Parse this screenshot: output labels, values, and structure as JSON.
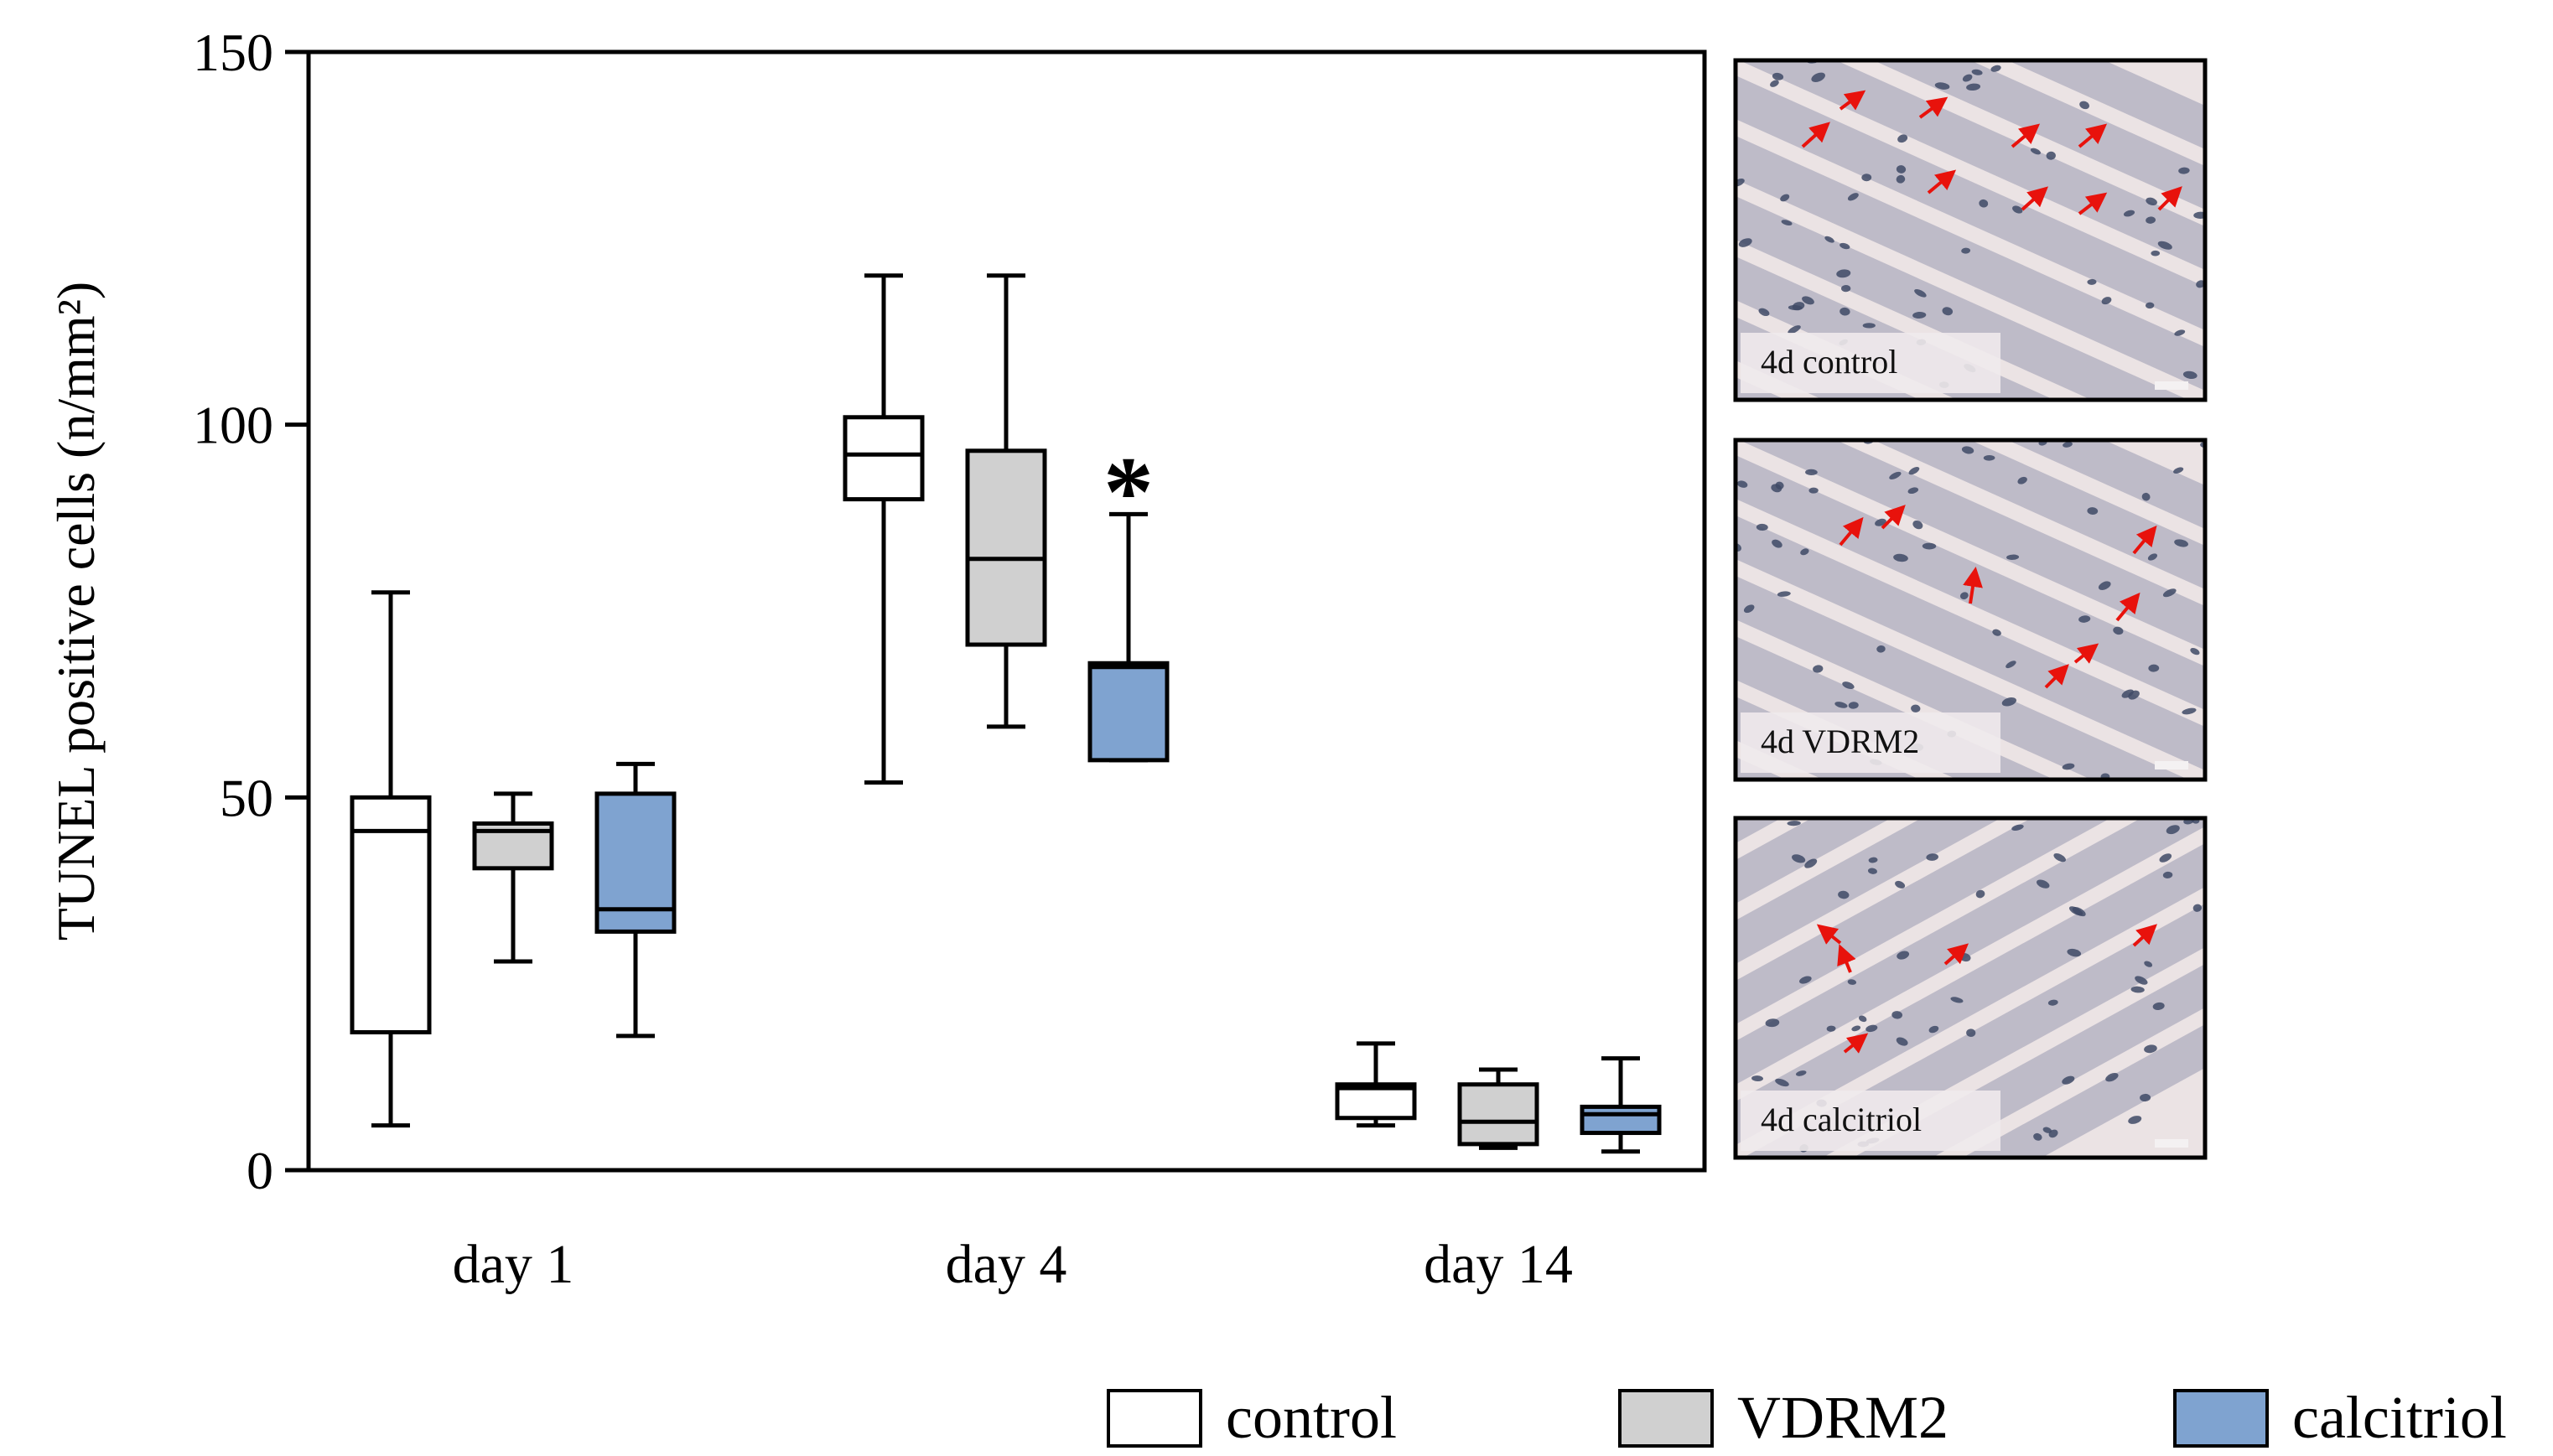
{
  "chart_data": {
    "type": "box",
    "ylabel": "TUNEL positive cells (n/mm²)",
    "xlabel": "",
    "ylim": [
      0,
      150
    ],
    "yticks": [
      0,
      50,
      100,
      150
    ],
    "categories": [
      "day 1",
      "day 4",
      "day 14"
    ],
    "series": [
      {
        "name": "control",
        "color": "#ffffff",
        "boxes": [
          {
            "min": 6,
            "q1": 18.5,
            "median": 45.5,
            "q3": 50,
            "max": 77.5
          },
          {
            "min": 52,
            "q1": 90,
            "median": 96,
            "q3": 101,
            "max": 120
          },
          {
            "min": 6,
            "q1": 7,
            "median": 11,
            "q3": 11.5,
            "max": 17
          }
        ]
      },
      {
        "name": "VDRM2",
        "color": "#d0d0d0",
        "boxes": [
          {
            "min": 28,
            "q1": 40.5,
            "median": 45.5,
            "q3": 46.5,
            "max": 50.5
          },
          {
            "min": 59.5,
            "q1": 70.5,
            "median": 82,
            "q3": 96.5,
            "max": 120
          },
          {
            "min": 3,
            "q1": 3.5,
            "median": 6.5,
            "q3": 11.5,
            "max": 13.5
          }
        ]
      },
      {
        "name": "calcitriol",
        "color": "#7fa3d0",
        "boxes": [
          {
            "min": 18,
            "q1": 32,
            "median": 35,
            "q3": 50.5,
            "max": 54.5
          },
          {
            "min": 55,
            "q1": 55,
            "median": 67.5,
            "q3": 68,
            "max": 88
          },
          {
            "min": 2.5,
            "q1": 5,
            "median": 7.5,
            "q3": 8.5,
            "max": 15
          }
        ]
      }
    ],
    "annotations": [
      {
        "text": "*",
        "category": "day 4",
        "series": "calcitriol",
        "y": 96
      }
    ]
  },
  "panels": [
    {
      "label": "4d control"
    },
    {
      "label": "4d VDRM2"
    },
    {
      "label": "4d calcitriol"
    }
  ],
  "colors": {
    "tissue": "#d4ccd6",
    "fiber": "#b9b6c4",
    "stroma": "#ebe3e4",
    "nucleus": "#3f4a66",
    "arrow": "#e8120c"
  }
}
